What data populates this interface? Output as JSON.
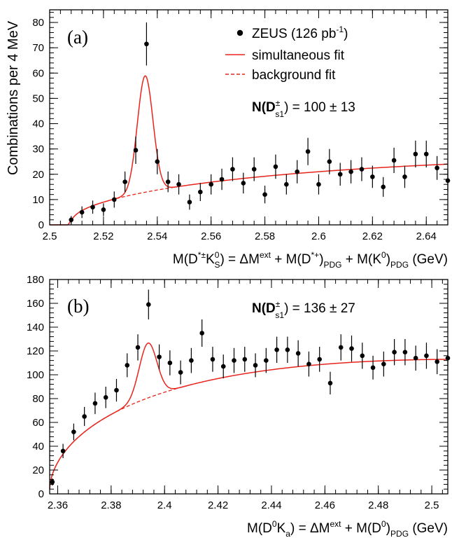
{
  "chart_data": [
    {
      "type": "scatter",
      "panel_label": "(a)",
      "ylabel": "Combinations per 4 MeV",
      "xlabel_parts": [
        "M(D",
        "*±",
        "K",
        "0",
        "S",
        ") = ΔM",
        "ext",
        " + M(D",
        "*+",
        ")",
        "PDG",
        " + M(K",
        "0",
        ")",
        "PDG",
        " (GeV)"
      ],
      "xlim": [
        2.5,
        2.648
      ],
      "ylim": [
        0,
        85
      ],
      "xticks": [
        2.5,
        2.52,
        2.54,
        2.56,
        2.58,
        2.6,
        2.62,
        2.64
      ],
      "xtick_labels": [
        "2.5",
        "2.52",
        "2.54",
        "2.56",
        "2.58",
        "2.6",
        "2.62",
        "2.64"
      ],
      "yticks": [
        0,
        10,
        20,
        30,
        40,
        50,
        60,
        70,
        80
      ],
      "ytick_labels": [
        "0",
        "10",
        "20",
        "30",
        "40",
        "50",
        "60",
        "70",
        "80"
      ],
      "legend": {
        "data_label": "ZEUS (126 pb",
        "data_label_sup": "-1",
        "data_label_end": ")",
        "fit_label": "simultaneous fit",
        "bkg_label": "background fit"
      },
      "annotation": {
        "main": "N(D",
        "sup": "±",
        "sub": "s1",
        "tail": ") = 100 ± 13"
      },
      "points": [
        {
          "x": 2.508,
          "y": 2,
          "err": 1.5
        },
        {
          "x": 2.512,
          "y": 5,
          "err": 2.3
        },
        {
          "x": 2.516,
          "y": 7,
          "err": 2.6
        },
        {
          "x": 2.52,
          "y": 6,
          "err": 2.5
        },
        {
          "x": 2.524,
          "y": 10,
          "err": 3.2
        },
        {
          "x": 2.528,
          "y": 17,
          "err": 4.1
        },
        {
          "x": 2.532,
          "y": 29.5,
          "err": 5.4
        },
        {
          "x": 2.536,
          "y": 71.5,
          "err": 8.5
        },
        {
          "x": 2.54,
          "y": 25,
          "err": 5.0
        },
        {
          "x": 2.544,
          "y": 17,
          "err": 4.1
        },
        {
          "x": 2.548,
          "y": 16,
          "err": 4.0
        },
        {
          "x": 2.552,
          "y": 9,
          "err": 3.0
        },
        {
          "x": 2.556,
          "y": 13,
          "err": 3.6
        },
        {
          "x": 2.56,
          "y": 16,
          "err": 4.0
        },
        {
          "x": 2.564,
          "y": 18,
          "err": 4.2
        },
        {
          "x": 2.568,
          "y": 22,
          "err": 4.7
        },
        {
          "x": 2.572,
          "y": 16.5,
          "err": 4.1
        },
        {
          "x": 2.576,
          "y": 22,
          "err": 4.7
        },
        {
          "x": 2.58,
          "y": 12,
          "err": 3.5
        },
        {
          "x": 2.584,
          "y": 23,
          "err": 4.8
        },
        {
          "x": 2.588,
          "y": 16,
          "err": 4.0
        },
        {
          "x": 2.592,
          "y": 21,
          "err": 4.6
        },
        {
          "x": 2.596,
          "y": 29,
          "err": 5.4
        },
        {
          "x": 2.6,
          "y": 16,
          "err": 4.0
        },
        {
          "x": 2.604,
          "y": 25,
          "err": 5.0
        },
        {
          "x": 2.608,
          "y": 20,
          "err": 4.5
        },
        {
          "x": 2.612,
          "y": 21,
          "err": 4.6
        },
        {
          "x": 2.616,
          "y": 22,
          "err": 4.7
        },
        {
          "x": 2.62,
          "y": 19,
          "err": 4.4
        },
        {
          "x": 2.624,
          "y": 15,
          "err": 3.9
        },
        {
          "x": 2.628,
          "y": 25.5,
          "err": 5.0
        },
        {
          "x": 2.632,
          "y": 19,
          "err": 4.4
        },
        {
          "x": 2.636,
          "y": 28,
          "err": 5.3
        },
        {
          "x": 2.64,
          "y": 28,
          "err": 5.3
        },
        {
          "x": 2.644,
          "y": 22.5,
          "err": 4.7
        },
        {
          "x": 2.648,
          "y": 17.5,
          "err": 4.2
        }
      ],
      "background": {
        "threshold": 2.5067,
        "A": 0.69,
        "B": 8,
        "C": -0.155
      },
      "peak": {
        "mean": 2.5355,
        "sigma": 0.0029,
        "amp": 46
      },
      "fit_solid_until": 2.546
    },
    {
      "type": "scatter",
      "panel_label": "(b)",
      "ylabel": "",
      "xlabel_parts": [
        "M(D",
        "0",
        "K",
        "a",
        ") = ΔM",
        "ext",
        " + M(D",
        "0",
        ")",
        "PDG",
        " (GeV)"
      ],
      "xlim": [
        2.357,
        2.506
      ],
      "ylim": [
        0,
        180
      ],
      "xticks": [
        2.36,
        2.38,
        2.4,
        2.42,
        2.44,
        2.46,
        2.48,
        2.5
      ],
      "xtick_labels": [
        "2.36",
        "2.38",
        "2.4",
        "2.42",
        "2.44",
        "2.46",
        "2.48",
        "2.5"
      ],
      "yticks": [
        0,
        20,
        40,
        60,
        80,
        100,
        120,
        140,
        160,
        180
      ],
      "ytick_labels": [
        "0",
        "20",
        "40",
        "60",
        "80",
        "100",
        "120",
        "140",
        "160",
        "180"
      ],
      "annotation": {
        "main": "N(D",
        "sup": "±",
        "sub": "s1",
        "tail": ") = 136 ± 27"
      },
      "points": [
        {
          "x": 2.358,
          "y": 10,
          "err": 3
        },
        {
          "x": 2.362,
          "y": 36,
          "err": 6
        },
        {
          "x": 2.366,
          "y": 52,
          "err": 7
        },
        {
          "x": 2.37,
          "y": 65,
          "err": 8
        },
        {
          "x": 2.374,
          "y": 76,
          "err": 9
        },
        {
          "x": 2.378,
          "y": 81,
          "err": 9
        },
        {
          "x": 2.382,
          "y": 87,
          "err": 9.5
        },
        {
          "x": 2.386,
          "y": 108,
          "err": 10
        },
        {
          "x": 2.39,
          "y": 123,
          "err": 11
        },
        {
          "x": 2.394,
          "y": 159,
          "err": 12.5
        },
        {
          "x": 2.398,
          "y": 115,
          "err": 10.5
        },
        {
          "x": 2.402,
          "y": 110,
          "err": 10.5
        },
        {
          "x": 2.406,
          "y": 102,
          "err": 10
        },
        {
          "x": 2.41,
          "y": 112,
          "err": 10.5
        },
        {
          "x": 2.414,
          "y": 135,
          "err": 11.5
        },
        {
          "x": 2.418,
          "y": 113,
          "err": 10.5
        },
        {
          "x": 2.422,
          "y": 107,
          "err": 10
        },
        {
          "x": 2.426,
          "y": 112,
          "err": 10.5
        },
        {
          "x": 2.43,
          "y": 113,
          "err": 10.5
        },
        {
          "x": 2.434,
          "y": 108,
          "err": 10
        },
        {
          "x": 2.438,
          "y": 112,
          "err": 10.5
        },
        {
          "x": 2.442,
          "y": 121,
          "err": 11
        },
        {
          "x": 2.446,
          "y": 121,
          "err": 11
        },
        {
          "x": 2.45,
          "y": 118,
          "err": 11
        },
        {
          "x": 2.454,
          "y": 109,
          "err": 10.5
        },
        {
          "x": 2.458,
          "y": 113,
          "err": 10.5
        },
        {
          "x": 2.462,
          "y": 93,
          "err": 9.5
        },
        {
          "x": 2.466,
          "y": 123,
          "err": 11
        },
        {
          "x": 2.47,
          "y": 122,
          "err": 11
        },
        {
          "x": 2.474,
          "y": 116,
          "err": 11
        },
        {
          "x": 2.478,
          "y": 106,
          "err": 10
        },
        {
          "x": 2.482,
          "y": 109,
          "err": 10.5
        },
        {
          "x": 2.486,
          "y": 119,
          "err": 11
        },
        {
          "x": 2.49,
          "y": 119,
          "err": 11
        },
        {
          "x": 2.494,
          "y": 114,
          "err": 10.5
        },
        {
          "x": 2.498,
          "y": 116,
          "err": 11
        },
        {
          "x": 2.502,
          "y": 111,
          "err": 10.5
        },
        {
          "x": 2.506,
          "y": 114,
          "err": 10.5
        }
      ],
      "background": {
        "threshold": 2.3568,
        "A": 0.55,
        "B": 55,
        "C": -0.32
      },
      "peak": {
        "mean": 2.3938,
        "sigma": 0.0033,
        "amp": 46
      },
      "fit_solid_until": 2.4065
    }
  ],
  "colors": {
    "fit": "#e8241c",
    "data": "#000000"
  }
}
